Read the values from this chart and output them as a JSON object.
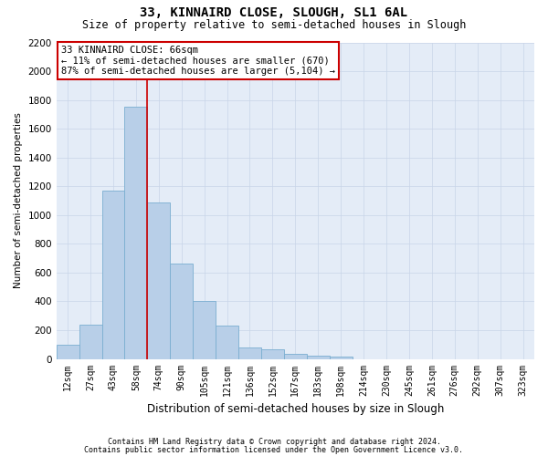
{
  "title": "33, KINNAIRD CLOSE, SLOUGH, SL1 6AL",
  "subtitle": "Size of property relative to semi-detached houses in Slough",
  "xlabel": "Distribution of semi-detached houses by size in Slough",
  "ylabel": "Number of semi-detached properties",
  "footnote1": "Contains HM Land Registry data © Crown copyright and database right 2024.",
  "footnote2": "Contains public sector information licensed under the Open Government Licence v3.0.",
  "annotation_title": "33 KINNAIRD CLOSE: 66sqm",
  "annotation_line1": "← 11% of semi-detached houses are smaller (670)",
  "annotation_line2": "87% of semi-detached houses are larger (5,104) →",
  "bar_labels": [
    "12sqm",
    "27sqm",
    "43sqm",
    "58sqm",
    "74sqm",
    "90sqm",
    "105sqm",
    "121sqm",
    "136sqm",
    "152sqm",
    "167sqm",
    "183sqm",
    "198sqm",
    "214sqm",
    "230sqm",
    "245sqm",
    "261sqm",
    "276sqm",
    "292sqm",
    "307sqm",
    "323sqm"
  ],
  "bar_values": [
    100,
    240,
    1170,
    1750,
    1090,
    660,
    400,
    230,
    80,
    70,
    35,
    25,
    15,
    0,
    0,
    0,
    0,
    0,
    0,
    0,
    0
  ],
  "bar_color": "#b8cfe8",
  "bar_edge_color": "#7aaed0",
  "highlight_color": "#cc0000",
  "red_line_x": 3.5,
  "ylim_max": 2200,
  "ytick_step": 200,
  "grid_color": "#c8d4e8",
  "bg_color": "#e4ecf7"
}
